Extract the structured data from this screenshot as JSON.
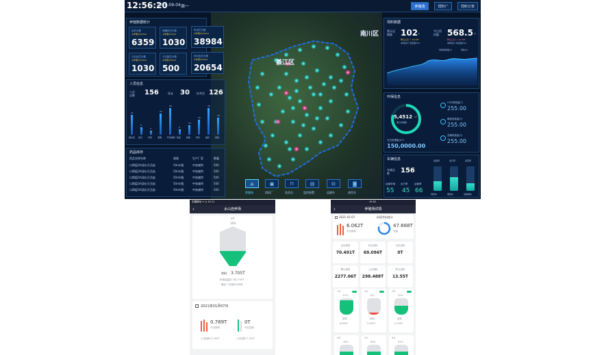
{
  "dashboard": {
    "clock": "12:56:20",
    "date": "2020-09-04",
    "weekday": "周一",
    "nav": [
      {
        "label": "养殖场",
        "active": true
      },
      {
        "label": "饲料厂",
        "active": false
      },
      {
        "label": "饲料订单",
        "active": false
      }
    ],
    "map": {
      "district": "綦江区",
      "neighbor": "南川区"
    },
    "farm_stats": {
      "title": "养殖数据统计",
      "kpis": [
        {
          "label": "存栏头数",
          "sub": "今年累计XXXXX",
          "value": "6359"
        },
        {
          "label": "母猪存栏头数",
          "sub": "今年累计XXXX",
          "value": "1030"
        },
        {
          "label": "年出栏头数",
          "sub": "今年累计XXXXX",
          "value": "38984"
        },
        {
          "label": "今日出栏头数",
          "sub": "今年累计XXXXX",
          "value": "1030"
        },
        {
          "label": "今日新生头数",
          "sub": "今年累计XXXX",
          "value": "500"
        },
        {
          "label": "本月出栏头数",
          "sub": "今年累计XXXX",
          "value": "20654"
        }
      ]
    },
    "personnel": {
      "title": "人员信息",
      "items": [
        {
          "label": "人员总数",
          "value": "156"
        },
        {
          "label": "场长",
          "value": "30"
        },
        {
          "label": "技术员",
          "value": "126"
        }
      ],
      "chart_data": {
        "type": "bar",
        "categories": [
          "组长名",
          "武汉",
          "中英",
          "退猪",
          "环境维护",
          "防疫",
          "其他",
          "饲养",
          "组织",
          "其他"
        ],
        "values": [
          21,
          8,
          4,
          22,
          28,
          6,
          10,
          16,
          28,
          18
        ],
        "labels": [
          "21",
          "8",
          "4",
          "22",
          "28",
          "6",
          "10",
          "16",
          "28",
          "18"
        ]
      }
    },
    "drugs": {
      "title": "药品库存",
      "headers": [
        "药品名称名称",
        "规格",
        "生产厂家",
        "数量"
      ],
      "rows": [
        [
          "口蹄疫OA双价灭活苗",
          "50ml/瓶",
          "中农威特",
          "500"
        ],
        [
          "口蹄疫OA双价灭活苗",
          "50ml/瓶",
          "中农威特",
          "500"
        ],
        [
          "口蹄疫OA双价灭活苗",
          "50ml/瓶",
          "中农威特",
          "500"
        ],
        [
          "口蹄疫OA双价灭活苗",
          "50ml/瓶",
          "中农威特",
          "500"
        ],
        [
          "口蹄疫OA双价灭活苗",
          "50ml/瓶",
          "中农威特",
          "500"
        ]
      ]
    },
    "map_tabs": [
      {
        "label": "养殖场",
        "icon": "farm-icon",
        "active": true
      },
      {
        "label": "饲料厂",
        "icon": "feed-icon",
        "active": false
      },
      {
        "label": "洗消点",
        "icon": "wash-icon",
        "active": false
      },
      {
        "label": "监控装置",
        "icon": "monitor-icon",
        "active": false
      },
      {
        "label": "运输车",
        "icon": "truck-icon",
        "active": false
      },
      {
        "label": "病死车",
        "icon": "car-icon",
        "active": false
      }
    ],
    "feed": {
      "title": "饲料数据",
      "a_label": "累计运输量",
      "a_value": "102",
      "a_unit": "t",
      "a_sub1": "昨日上日 ↑ 10.58T",
      "a_sub2": "本周总计 供应量XXX",
      "b_label": "今日用料量",
      "b_value": "568.5",
      "b_unit": "t",
      "b_sub1": "昨日上日 ↓ 10.58T",
      "b_sub2": "本周总计 供应量XXX",
      "legend": [
        "饲料使用量(T)",
        "饲料(T)"
      ]
    },
    "env": {
      "title": "环保信息",
      "ring_value": "5,4512",
      "ring_unit": "m³",
      "ring_label": "累计处理量",
      "total_label": "当日处理量(m³)",
      "total_value": "150,0000.00",
      "items": [
        {
          "label": "COD排放量(T)",
          "value": "255.00"
        },
        {
          "label": "氨氮排放量(T)",
          "value": "255.00"
        },
        {
          "label": "总磷排放量(T)",
          "value": "255.00"
        }
      ]
    },
    "vehicles": {
      "title": "车辆信息",
      "total_label": "车辆总数",
      "total_value": "156",
      "legend": [
        "运输率",
        "出行率",
        "运营率"
      ],
      "stats": [
        {
          "label": "运输车辆",
          "value": "55"
        },
        {
          "label": "出行率",
          "value": "45"
        },
        {
          "label": "运营率",
          "value": "66"
        }
      ],
      "bins": [
        {
          "label": "饲料车",
          "fill": 0.4
        },
        {
          "label": "病死车",
          "fill": 0.55
        },
        {
          "label": "运输猪车",
          "fill": 0.3
        }
      ]
    }
  },
  "phone1": {
    "status": "中国移动 ✦  ◷ 10:11",
    "title": "太山自养场",
    "bin_label": "4#",
    "bin_percent": "38%",
    "bin_fill": 0.38,
    "remaining_label": "余料",
    "remaining_value": "3.705T",
    "capacity_text": "料塔容量约 184.794T",
    "last_fill_text": "最近一次加料 8天前",
    "date": "2021年01月07日",
    "today_use_value": "0.789T",
    "today_use_label": "今日用料",
    "today_fill_value": "0T",
    "today_fill_label": "今日加料",
    "prev_use": "上次加料 0.16OT",
    "prev_fill": "上次加料 7.304T"
  },
  "phone2": {
    "status": "15:52",
    "title": "养殖场详情",
    "date": "2021-01-07",
    "stat_title": "料塔余料统计",
    "today_use_value": "6.062T",
    "today_use_label": "今日用料",
    "total_value": "47.668T",
    "total_label": "总量",
    "grid": [
      {
        "label": "当月用料",
        "value": "70.491T"
      },
      {
        "label": "本月加料",
        "value": "69.096T"
      },
      {
        "label": "今日加料",
        "value": "0T"
      },
      {
        "label": "累计用料",
        "value": "2277.06T"
      },
      {
        "label": "上月用料",
        "value": "298.488T"
      },
      {
        "label": "昨日加料",
        "value": "13.55T"
      }
    ],
    "bins": [
      {
        "name": "1#",
        "percent": "87%",
        "fill": 0.87,
        "label": "余料",
        "value": "8.694T",
        "color": "#15c07a"
      },
      {
        "name": "2#",
        "percent": "6%",
        "fill": 0.06,
        "label": "余料",
        "value": "0.563T",
        "color": "#ee4a3c"
      },
      {
        "name": "3#",
        "percent": "55%",
        "fill": 0.55,
        "label": "余料",
        "value": "5.403T",
        "color": "#15c07a"
      }
    ],
    "bins_row2": [
      {
        "name": "4#",
        "percent": "38%"
      },
      {
        "name": "5#",
        "percent": "69%"
      },
      {
        "name": "6#",
        "percent": "61%"
      }
    ]
  }
}
